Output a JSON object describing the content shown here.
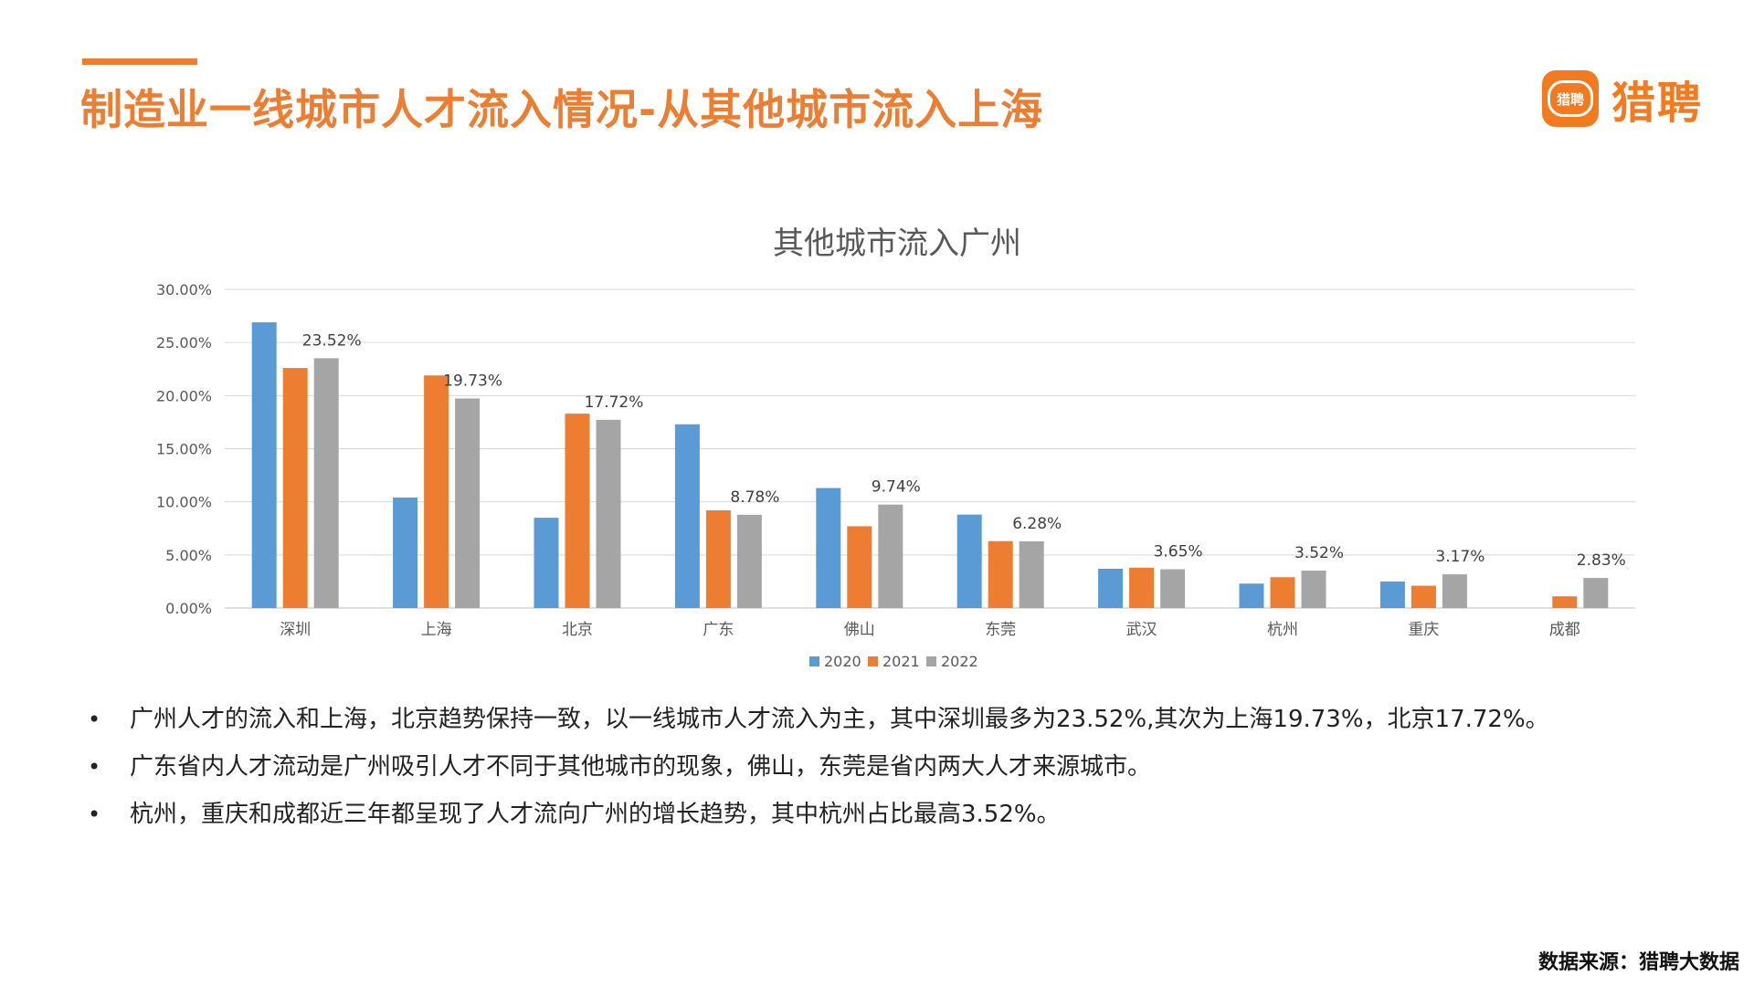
{
  "header": {
    "title": "制造业一线城市人才流入情况-从其他城市流入上海",
    "logo_badge_text": "猎聘",
    "logo_text": "猎聘",
    "accent_color": "#ed7d31"
  },
  "chart_data": {
    "type": "bar",
    "title": "其他城市流入广州",
    "categories": [
      "深圳",
      "上海",
      "北京",
      "广东",
      "佛山",
      "东莞",
      "武汉",
      "杭州",
      "重庆",
      "成都"
    ],
    "series": [
      {
        "name": "2020",
        "color": "#5b9bd5",
        "values": [
          26.9,
          10.4,
          8.5,
          17.3,
          11.3,
          8.8,
          3.7,
          2.3,
          2.5,
          0
        ]
      },
      {
        "name": "2021",
        "color": "#ed7d31",
        "values": [
          22.6,
          21.9,
          18.3,
          9.2,
          7.7,
          6.3,
          3.8,
          2.9,
          2.1,
          1.1
        ]
      },
      {
        "name": "2022",
        "color": "#a5a5a5",
        "values": [
          23.52,
          19.73,
          17.72,
          8.78,
          9.74,
          6.28,
          3.65,
          3.52,
          3.17,
          2.83
        ]
      }
    ],
    "data_labels": {
      "series": "2022",
      "labels": [
        "23.52%",
        "19.73%",
        "17.72%",
        "8.78%",
        "9.74%",
        "6.28%",
        "3.65%",
        "3.52%",
        "3.17%",
        "2.83%"
      ]
    },
    "yticks": [
      "0.00%",
      "5.00%",
      "10.00%",
      "15.00%",
      "20.00%",
      "25.00%",
      "30.00%"
    ],
    "ylim": [
      0,
      30
    ],
    "grid": true,
    "legend_position": "bottom"
  },
  "bullets": [
    "广州人才的流入和上海，北京趋势保持一致，以一线城市人才流入为主，其中深圳最多为23.52%,其次为上海19.73%，北京17.72%。",
    "广东省内人才流动是广州吸引人才不同于其他城市的现象，佛山，东莞是省内两大人才来源城市。",
    "杭州，重庆和成都近三年都呈现了人才流向广州的增长趋势，其中杭州占比最高3.52%。"
  ],
  "bullet_marker": "•",
  "source": "数据来源：猎聘大数据"
}
